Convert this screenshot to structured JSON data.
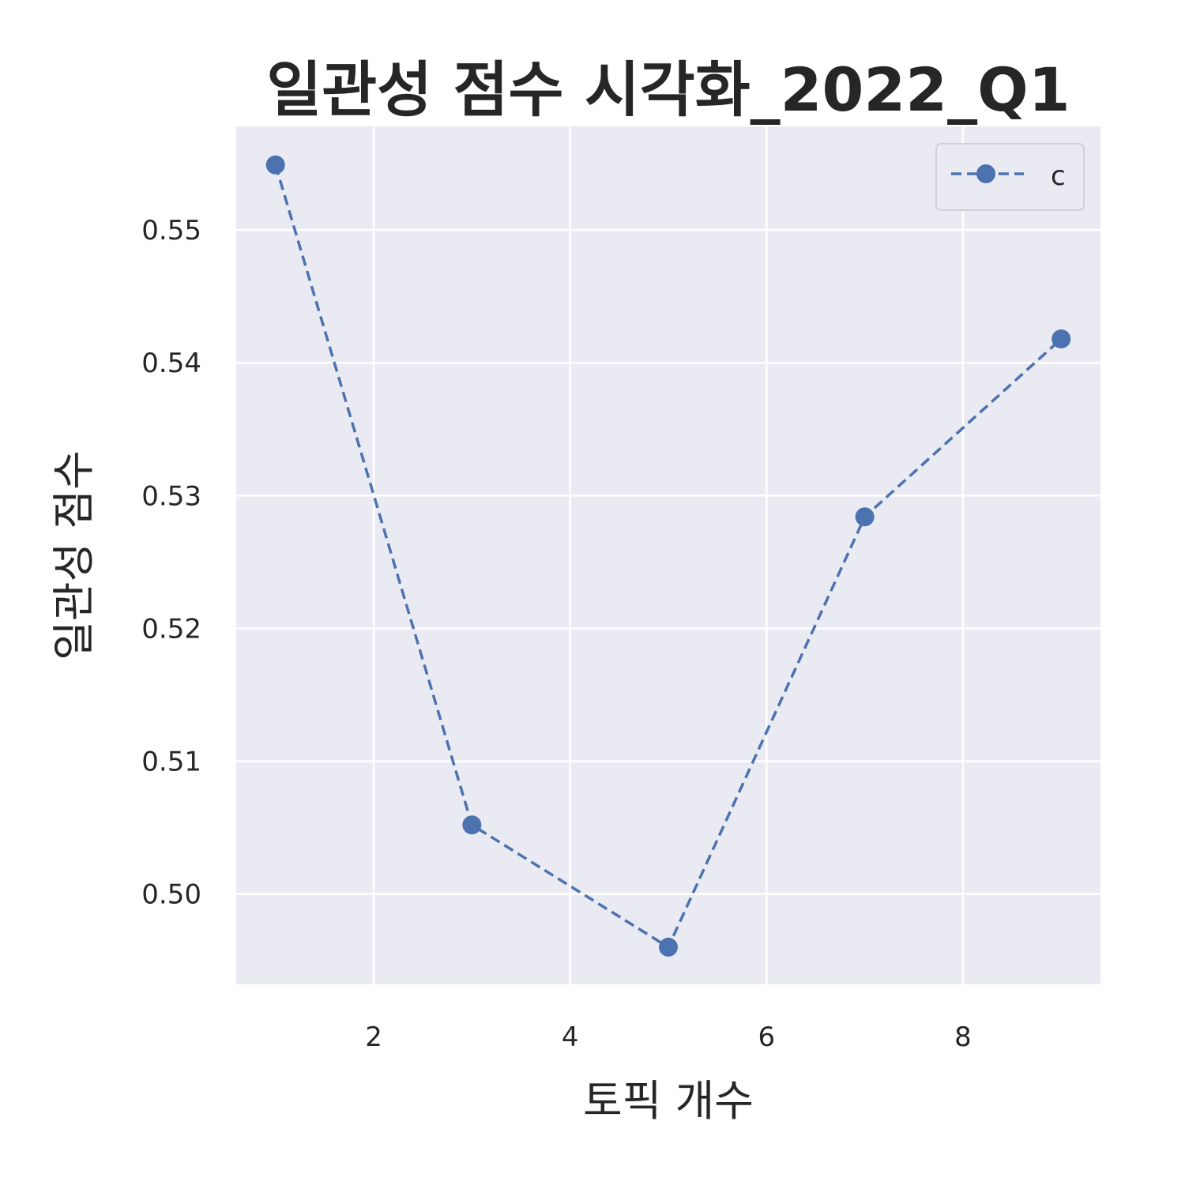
{
  "chart_data": {
    "type": "line",
    "title": "일관성 점수 시각화_2022_Q1",
    "xlabel": "토픽 개수",
    "ylabel": "일관성 점수",
    "x": [
      1,
      3,
      5,
      7,
      9
    ],
    "series": [
      {
        "name": "c",
        "values": [
          0.5549,
          0.5052,
          0.496,
          0.5284,
          0.5418
        ],
        "color": "#4c72b0",
        "linestyle": "dashed",
        "marker": "circle"
      }
    ],
    "xlim": [
      0.6,
      9.4
    ],
    "ylim": [
      0.4932,
      0.5578
    ],
    "xticks": [
      2,
      4,
      6,
      8
    ],
    "xtick_labels": [
      "2",
      "4",
      "6",
      "8"
    ],
    "yticks": [
      0.5,
      0.51,
      0.52,
      0.53,
      0.54,
      0.55
    ],
    "ytick_labels": [
      "0.50",
      "0.51",
      "0.52",
      "0.53",
      "0.54",
      "0.55"
    ],
    "grid": true,
    "legend_position": "top-right",
    "colors": {
      "plot_background": "#eaeaf2",
      "grid": "#ffffff",
      "text": "#262626"
    }
  }
}
